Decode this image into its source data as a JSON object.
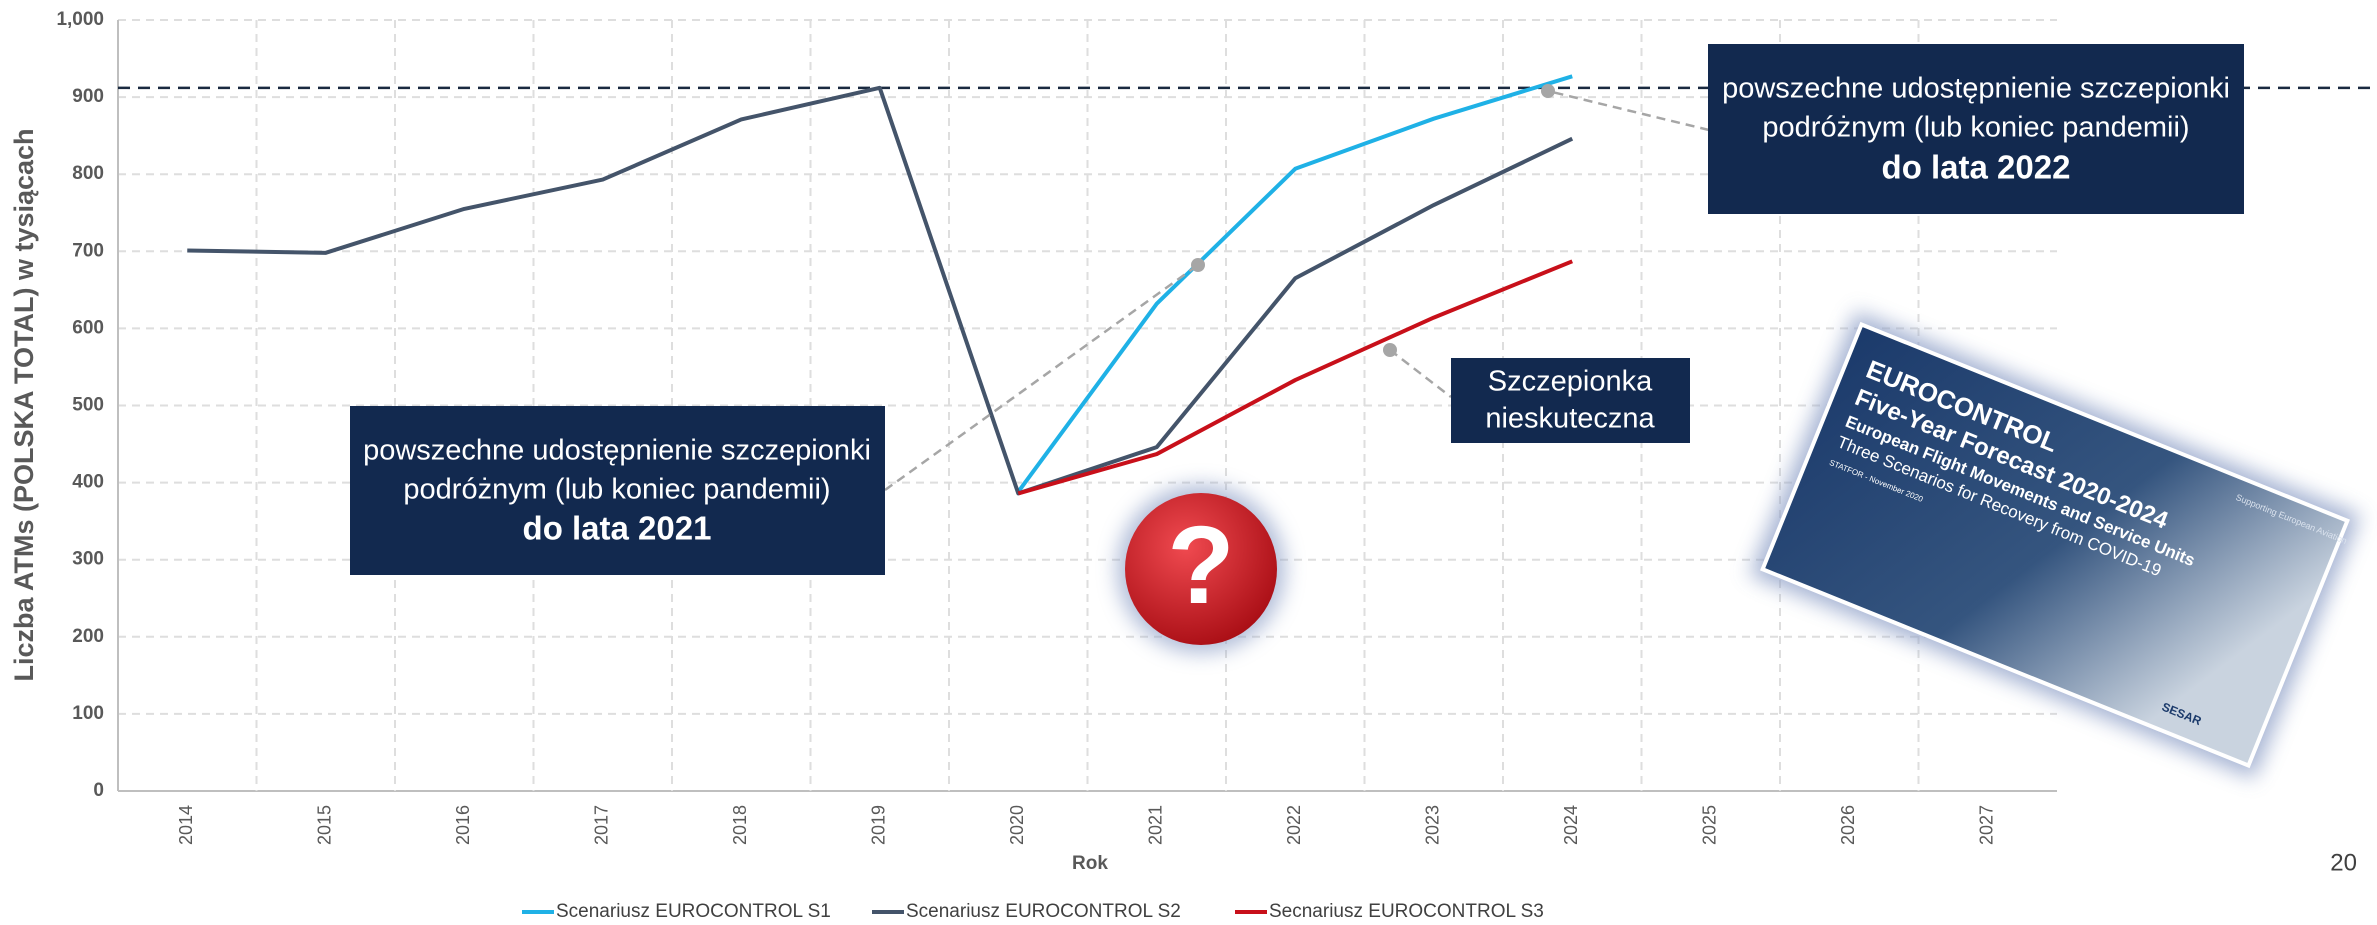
{
  "chart_data": {
    "type": "line",
    "y_label": "Liczba ATMs (POLSKA TOTAL) w tysiącach",
    "x_label": "Rok",
    "categories": [
      "2014",
      "2015",
      "2016",
      "2017",
      "2018",
      "2019",
      "2020",
      "2021",
      "2022",
      "2023",
      "2024",
      "2025",
      "2026",
      "2027"
    ],
    "series": [
      {
        "name": "Scenariusz EUROCONTROL S1",
        "color": "#1fb1e6",
        "values": [
          null,
          null,
          null,
          null,
          null,
          null,
          388,
          632,
          807,
          872,
          927,
          null,
          null,
          null
        ]
      },
      {
        "name": "Scenariusz EUROCONTROL S2",
        "color": "#44546a",
        "values": [
          701,
          698,
          755,
          793,
          871,
          912,
          386,
          446,
          665,
          760,
          846,
          null,
          null,
          null
        ]
      },
      {
        "name": "Secnariusz EUROCONTROL S3",
        "color": "#c8101a",
        "values": [
          null,
          null,
          null,
          null,
          null,
          null,
          386,
          437,
          533,
          614,
          687,
          null,
          null,
          null
        ]
      }
    ],
    "reference_line": 912,
    "ylim": [
      0,
      1000
    ],
    "yticks": [
      0,
      100,
      200,
      300,
      400,
      500,
      600,
      700,
      800,
      900,
      {
        "value": 1000,
        "label": "1,000"
      }
    ],
    "grid": true,
    "legend": "bottom"
  },
  "annotations": {
    "box_2021": {
      "text": "powszechne udostępnienie szczepionki",
      "text2": "podróżnym (lub koniec pandemii)",
      "bold": "do lata 2021"
    },
    "box_2022": {
      "text": "powszechne udostępnienie szczepionki",
      "text2": "podróżnym (lub koniec pandemii)",
      "bold": "do lata 2022"
    },
    "box_fail": {
      "text": "Szczepionka",
      "text2": "nieskuteczna"
    },
    "question": "?"
  },
  "report_cover": {
    "brand": "EUROCONTROL",
    "title": "Five-Year Forecast 2020-2024",
    "subtitle": "European Flight Movements and Service Units",
    "subtitle2": "Three Scenarios for Recovery from COVID-19",
    "date": "STATFOR - November 2020",
    "tagline": "Supporting European Aviation",
    "logo": "SESAR"
  },
  "page_number": "20"
}
